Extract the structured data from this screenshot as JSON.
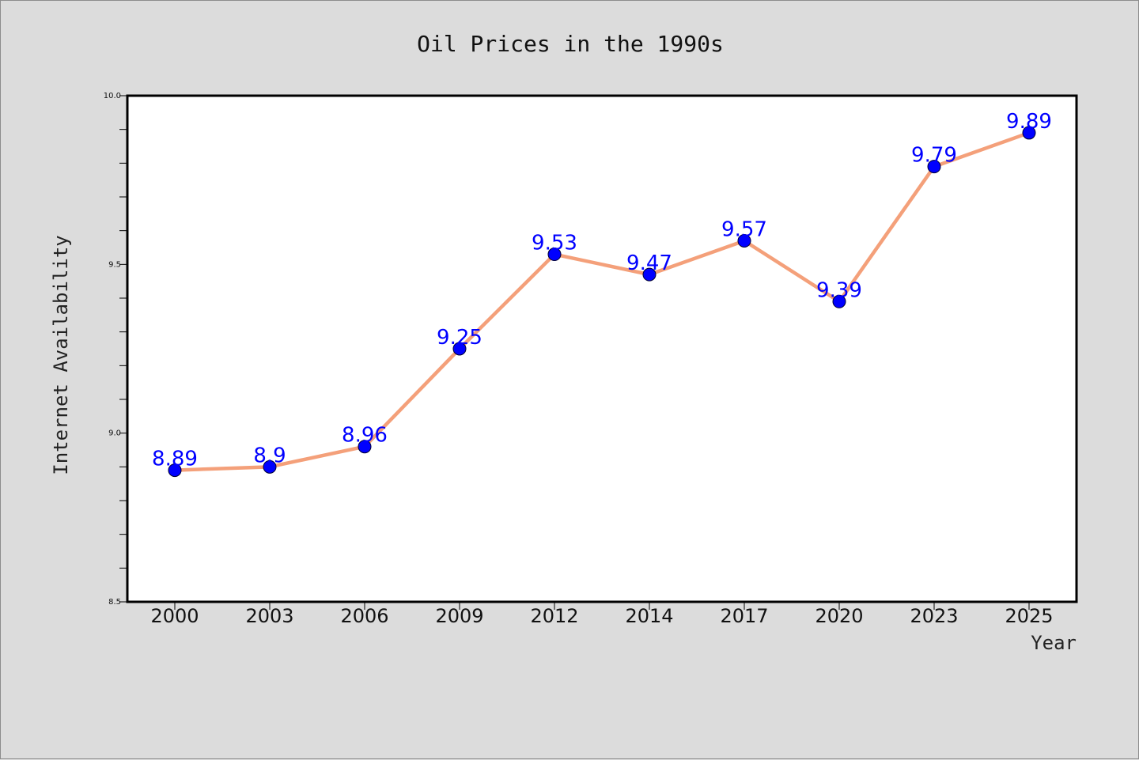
{
  "chart_data": {
    "type": "line",
    "title": "Oil Prices in the 1990s",
    "xlabel": "Year",
    "ylabel": "Internet Availability",
    "x": [
      "2000",
      "2003",
      "2006",
      "2009",
      "2012",
      "2014",
      "2017",
      "2020",
      "2023",
      "2025"
    ],
    "values": [
      8.89,
      8.9,
      8.96,
      9.25,
      9.53,
      9.47,
      9.57,
      9.39,
      9.79,
      9.89
    ],
    "data_labels": [
      "8.89",
      "8.9",
      "8.96",
      "9.25",
      "9.53",
      "9.47",
      "9.57",
      "9.39",
      "9.79",
      "9.89"
    ],
    "ylim": [
      8.5,
      10.0
    ],
    "yticks": [
      "8.5",
      "9.0",
      "9.5",
      "10.0"
    ],
    "grid": false,
    "legend": "none",
    "colors": {
      "line": "#f4a07a",
      "marker": "#0000ff",
      "marker_edge": "#000033",
      "data_label": "#0000ff",
      "background": "#dcdcdc",
      "plot_background": "#ffffff"
    }
  }
}
